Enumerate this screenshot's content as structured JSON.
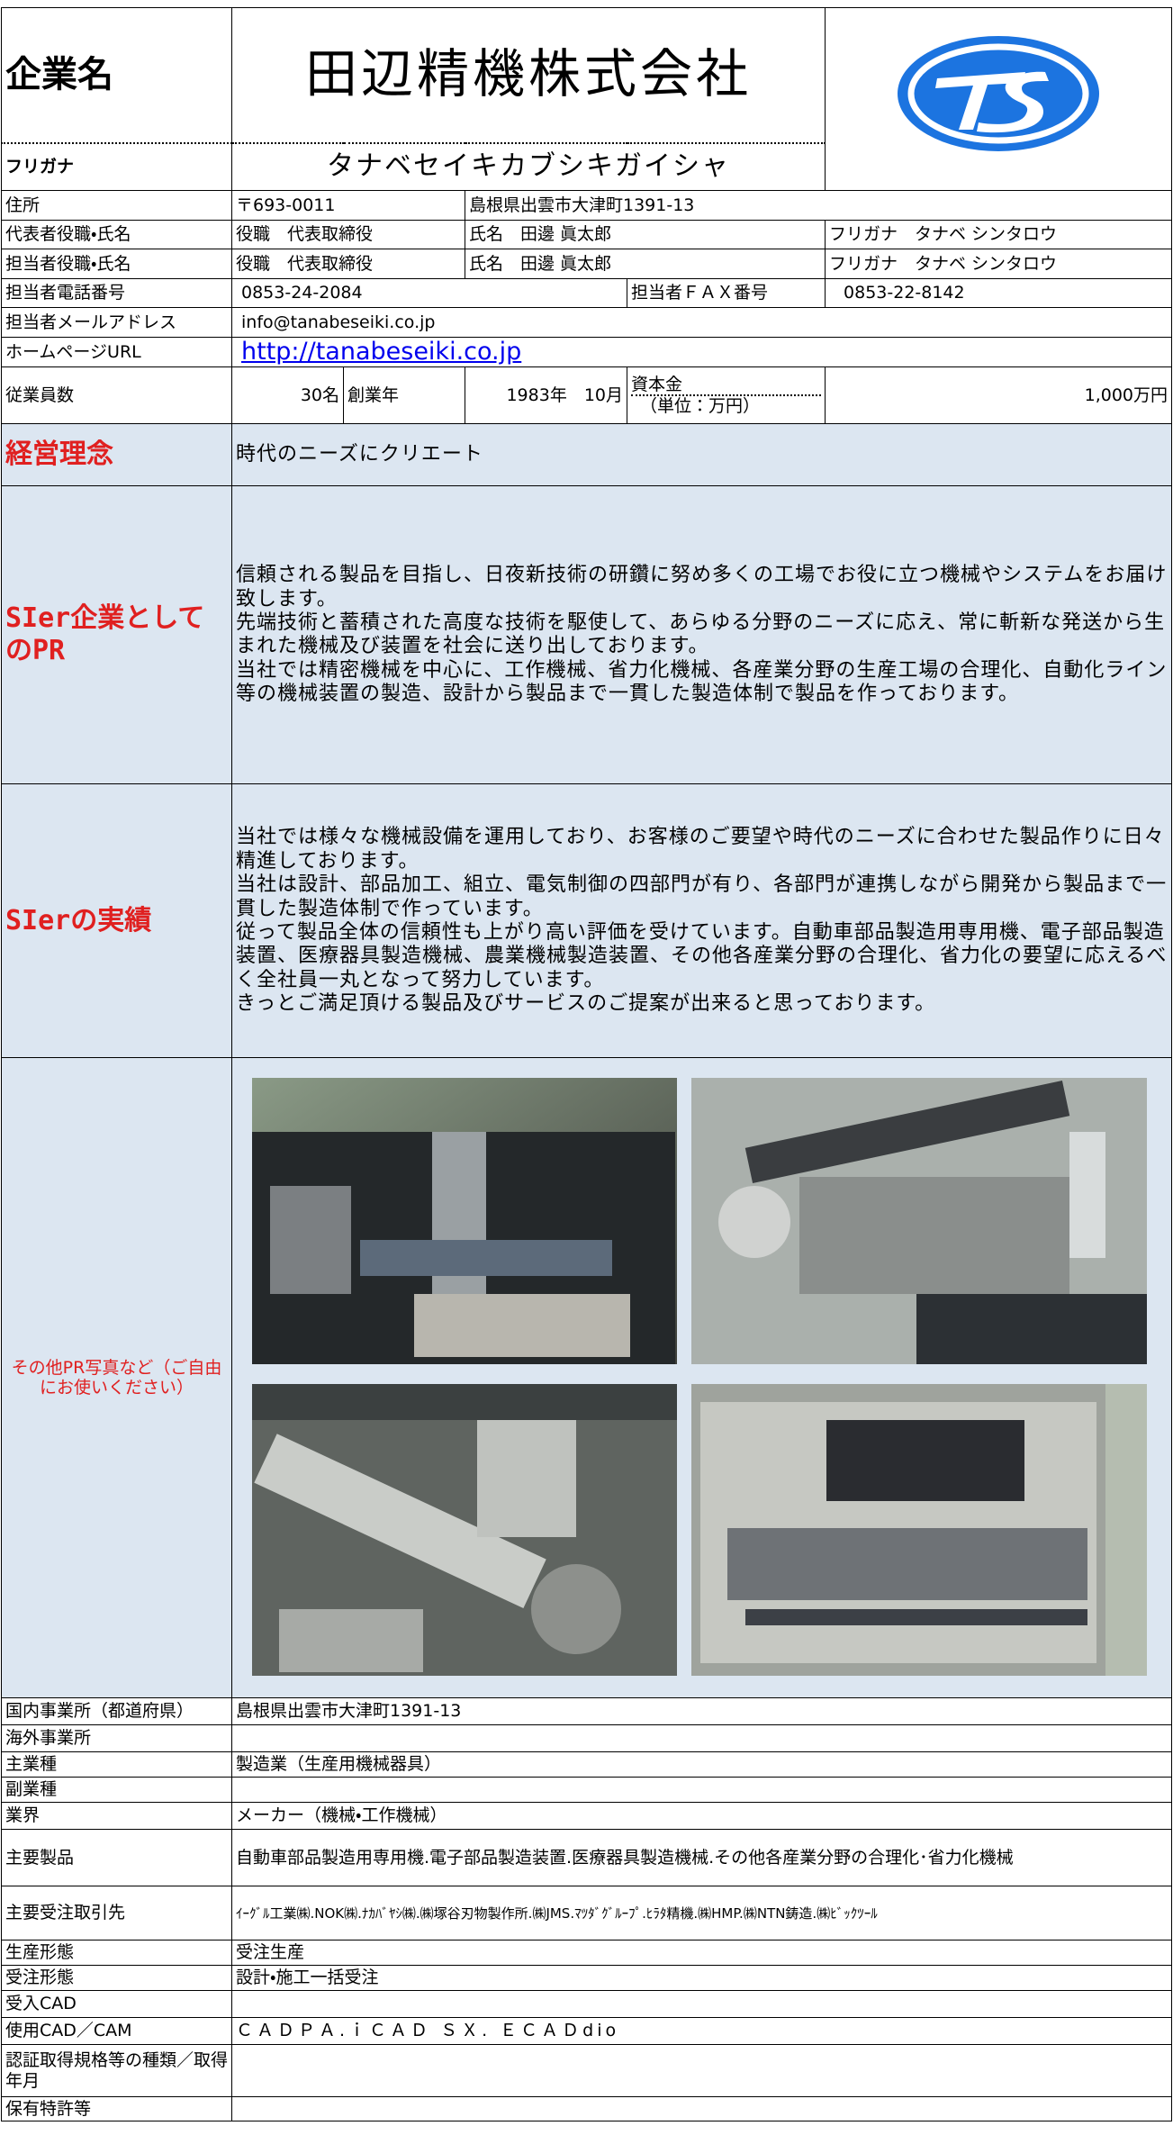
{
  "header": {
    "company_label": "企業名",
    "company_name": "田辺精機株式会社",
    "furigana_label": "フリガナ",
    "furigana": "タナベセイキカブシキガイシャ"
  },
  "address": {
    "label": "住所",
    "postal": "〒693-0011",
    "value": "島根県出雲市大津町1391-13"
  },
  "representative": {
    "label": "代表者役職・氏名",
    "title": "役職　代表取締役",
    "name": "氏名　田邊 眞太郎",
    "furigana": "フリガナ　タナベ シンタロウ"
  },
  "contact_person": {
    "label": "担当者役職・氏名",
    "title": "役職　代表取締役",
    "name": "氏名　田邊 眞太郎",
    "furigana": "フリガナ　タナベ シンタロウ"
  },
  "phone": {
    "label": "担当者電話番号",
    "value": "0853-24-2084",
    "fax_label": "担当者ＦＡＸ番号",
    "fax": "0853-22-8142"
  },
  "email": {
    "label": "担当者メールアドレス",
    "value": "info@tanabeseiki.co.jp"
  },
  "homepage": {
    "label": "ホームページURL",
    "value": "http://tanabeseiki.co.jp"
  },
  "employees": {
    "label": "従業員数",
    "value": "30名",
    "founded_label": "創業年",
    "founded": "1983年　10月",
    "capital_label": "資本金",
    "capital_unit": "（単位：万円）",
    "capital": "1,000万円"
  },
  "philosophy": {
    "label": "経営理念",
    "text": "時代のニーズにクリエート"
  },
  "pr": {
    "label": "SIer企業としてのPR",
    "paragraphs": [
      "信頼される製品を目指し、日夜新技術の研鑽に努め多くの工場でお役に立つ機械やシステムをお届け致します。",
      "先端技術と蓄積された高度な技術を駆使して、あらゆる分野のニーズに応え、常に斬新な発送から生まれた機械及び装置を社会に送り出しております。",
      "当社では精密機械を中心に、工作機械、省力化機械、各産業分野の生産工場の合理化、自動化ライン等の機械装置の製造、設計から製品まで一貫した製造体制で製品を作っております。"
    ]
  },
  "achievements": {
    "label": "SIerの実績",
    "paragraphs": [
      "当社では様々な機械設備を運用しており、お客様のご要望や時代のニーズに合わせた製品作りに日々精進しております。",
      "当社は設計、部品加工、組立、電気制御の四部門が有り、各部門が連携しながら開発から製品まで一貫した製造体制で作っています。",
      "従って製品全体の信頼性も上がり高い評価を受けています。自動車部品製造用専用機、電子部品製造装置、医療器具製造機械、農業機械製造装置、その他各産業分野の合理化、省力化の要望に応えるべく全社員一丸となって努力しています。",
      "きっとご満足頂ける製品及びサービスのご提案が出来ると思っております。"
    ]
  },
  "photos": {
    "label": "その他PR写真など（ご自由にお使いください）"
  },
  "details": [
    {
      "label": "国内事業所（都道府県）",
      "value": "島根県出雲市大津町1391-13"
    },
    {
      "label": "海外事業所"
    },
    {
      "label": "主業種",
      "value": "製造業（生産用機械器具）"
    },
    {
      "label": "副業種"
    },
    {
      "label": "業界",
      "value": "メーカー（機械・工作機械）"
    },
    {
      "label": "主要製品",
      "value": "自動車部品製造用専用機.電子部品製造装置.医療器具製造機械.その他各産業分野の合理化･省力化機械"
    },
    {
      "label": "主要受注取引先",
      "value": "ｲｰｸﾞﾙ工業㈱.NOK㈱.ﾅｶﾊﾞﾔｼ㈱.㈱塚谷刃物製作所.㈱JMS.ﾏﾂﾀﾞｸﾞﾙｰﾌﾟ.ﾋﾗﾀ精機.㈱HMP.㈱NTN鋳造.㈱ﾋﾞｯｸﾂｰﾙ"
    },
    {
      "label": "生産形態",
      "value": "受注生産"
    },
    {
      "label": "受注形態",
      "value": "設計・施工一括受注"
    },
    {
      "label": "受入CAD"
    },
    {
      "label": "使用CAD／CAM",
      "value": "ＣＡＤＰＡ.ｉＣＡＤ ＳＸ. ＥＣＡＤdio"
    },
    {
      "label": "認証取得規格等の種類／取得年月"
    },
    {
      "label": "保有特許等"
    }
  ]
}
